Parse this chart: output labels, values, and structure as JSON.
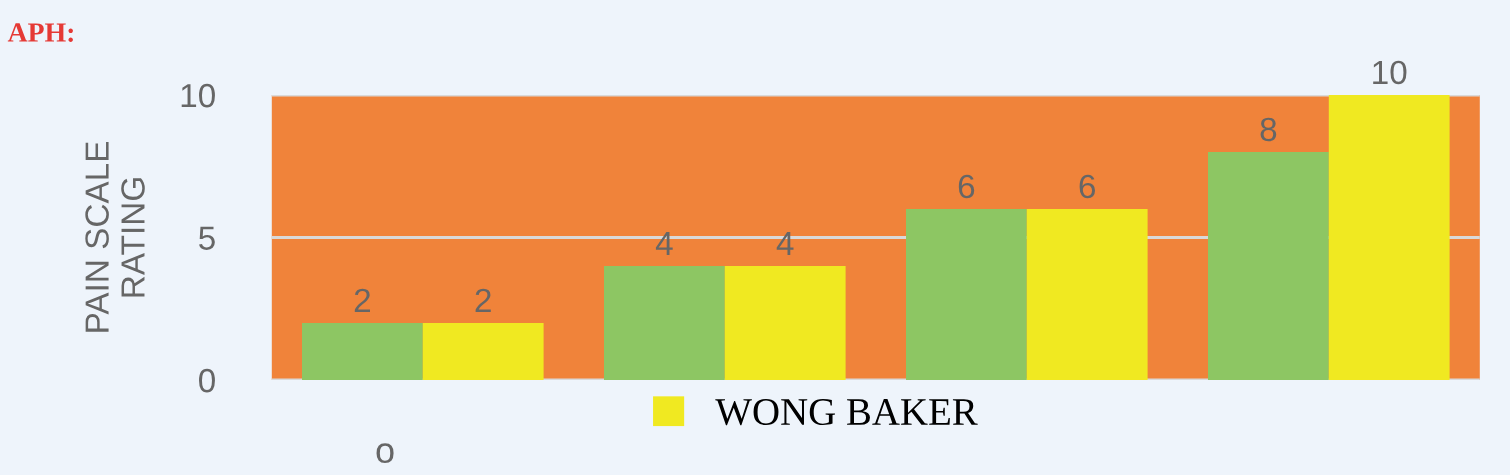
{
  "chart_data": {
    "type": "bar",
    "title": "APH:",
    "ylabel": "PAIN SCALE\nRATING",
    "categories": [
      null,
      null,
      null,
      null
    ],
    "series": [
      {
        "color": "#8dc663",
        "values": [
          2,
          4,
          6,
          8
        ]
      },
      {
        "name": "WONG BAKER",
        "color": "#f0e921",
        "values": [
          2,
          4,
          6,
          10
        ]
      }
    ],
    "ylim": [
      0,
      10
    ],
    "yticks": [
      0,
      5,
      10
    ],
    "grid": "y",
    "data_labels": true,
    "legend": "bottom",
    "annotations": [
      "o"
    ]
  }
}
